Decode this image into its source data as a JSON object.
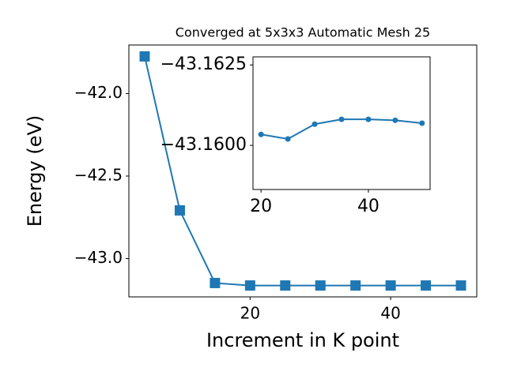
{
  "chart_data": [
    {
      "type": "line",
      "title": "Converged at 5x3x3 Automatic Mesh 25",
      "x_label": "Increment in K point",
      "y_label": "Energy (eV)",
      "x": [
        5,
        10,
        15,
        20,
        25,
        30,
        35,
        40,
        45,
        50
      ],
      "series": [
        {
          "color": "#1f77b4",
          "marker": "square",
          "values": [
            -41.775,
            -42.708,
            -43.148,
            -43.163,
            -43.163,
            -43.163,
            -43.163,
            -43.163,
            -43.163,
            -43.163
          ]
        }
      ],
      "xlim": [
        2.75,
        52.25
      ],
      "ylim": [
        -43.232,
        -41.706
      ],
      "xticks": [
        20,
        40
      ],
      "yticks": [
        {
          "value": -42.0,
          "label": "−42.0"
        },
        {
          "value": -42.5,
          "label": "−42.5"
        },
        {
          "value": -43.0,
          "label": "−43.0"
        }
      ]
    },
    {
      "type": "line",
      "x": [
        20,
        25,
        30,
        35,
        40,
        45,
        50
      ],
      "series": [
        {
          "color": "#1f77b4",
          "marker": "circle",
          "values": [
            -43.16034,
            -43.1602,
            -43.16066,
            -43.16081,
            -43.16081,
            -43.16078,
            -43.16069
          ]
        }
      ],
      "xlim": [
        18.5,
        51.5
      ],
      "ylim": [
        -43.15863,
        -43.16275
      ],
      "xticks": [
        20,
        40
      ],
      "yticks": [
        {
          "value": -43.1625,
          "label": "−43.1625"
        },
        {
          "value": -43.16,
          "label": "−43.1600"
        }
      ]
    }
  ]
}
